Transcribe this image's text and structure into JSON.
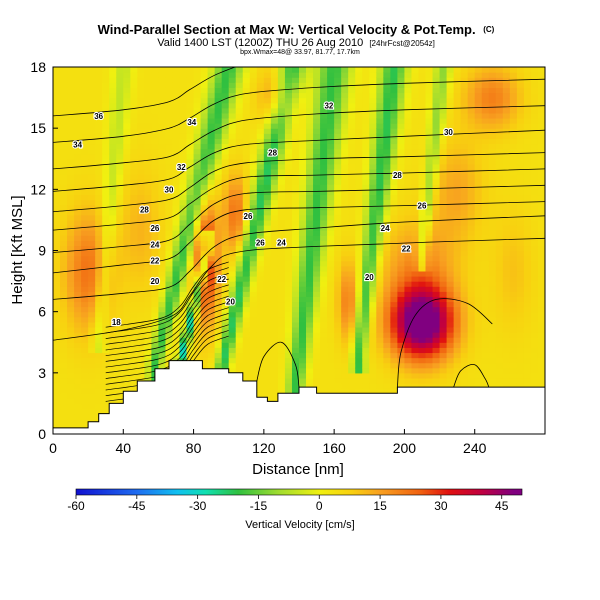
{
  "chart_data": {
    "type": "heatmap",
    "title": "Wind-Parallel Section at Max W: Vertical Velocity & Pot.Temp.",
    "title_suffix": "(C)",
    "subtitle_main": "Valid 1400 LST (1200Z) THU 26 Aug 2010",
    "subtitle_fcst": "[24hrFcst@2054z]",
    "subtitle_small": "bpx.Wmax=48@ 33.97, 81.77, 17.7km",
    "xlabel": "Distance [nm]",
    "ylabel": "Height [Kft MSL]",
    "xlim": [
      0,
      280
    ],
    "ylim": [
      0,
      18
    ],
    "xticks": [
      0,
      40,
      80,
      120,
      160,
      200,
      240
    ],
    "yticks": [
      0,
      3,
      6,
      9,
      12,
      15,
      18
    ],
    "colorbar": {
      "label": "Vertical Velocity [cm/s]",
      "range": [
        -60,
        50
      ],
      "ticks": [
        -60,
        -45,
        -30,
        -15,
        0,
        15,
        30,
        45
      ],
      "stops": [
        {
          "v": -60,
          "c": "#1010d0"
        },
        {
          "v": -45,
          "c": "#1f6cf0"
        },
        {
          "v": -35,
          "c": "#10c0f0"
        },
        {
          "v": -28,
          "c": "#10e0b0"
        },
        {
          "v": -20,
          "c": "#30c040"
        },
        {
          "v": -10,
          "c": "#a0dc30"
        },
        {
          "v": 0,
          "c": "#f0f010"
        },
        {
          "v": 8,
          "c": "#f8d010"
        },
        {
          "v": 15,
          "c": "#f8a020"
        },
        {
          "v": 25,
          "c": "#f06010"
        },
        {
          "v": 32,
          "c": "#e01010"
        },
        {
          "v": 40,
          "c": "#c00040"
        },
        {
          "v": 48,
          "c": "#800080"
        }
      ]
    },
    "terrain": [
      [
        0,
        0.3
      ],
      [
        20,
        0.3
      ],
      [
        20,
        0.6
      ],
      [
        26,
        0.6
      ],
      [
        26,
        1.0
      ],
      [
        32,
        1.0
      ],
      [
        32,
        1.5
      ],
      [
        40,
        1.5
      ],
      [
        40,
        2.1
      ],
      [
        48,
        2.1
      ],
      [
        48,
        2.6
      ],
      [
        58,
        2.6
      ],
      [
        58,
        3.2
      ],
      [
        66,
        3.2
      ],
      [
        66,
        3.6
      ],
      [
        85,
        3.6
      ],
      [
        85,
        3.2
      ],
      [
        100,
        3.2
      ],
      [
        100,
        3.0
      ],
      [
        108,
        3.0
      ],
      [
        108,
        2.6
      ],
      [
        116,
        2.6
      ],
      [
        116,
        1.8
      ],
      [
        122,
        1.8
      ],
      [
        122,
        1.6
      ],
      [
        128,
        1.6
      ],
      [
        128,
        2.0
      ],
      [
        140,
        2.0
      ],
      [
        140,
        2.3
      ],
      [
        150,
        2.3
      ],
      [
        150,
        2.0
      ],
      [
        196,
        2.0
      ],
      [
        196,
        2.3
      ],
      [
        280,
        2.3
      ]
    ],
    "bands": [
      {
        "x1": 58,
        "y1": 3.4,
        "x2": 100,
        "y2": 18,
        "wbot": 4,
        "wtop": 9,
        "amp": -24
      },
      {
        "x1": 72,
        "y1": 3.4,
        "x2": 88,
        "y2": 9,
        "wbot": 2.5,
        "wtop": 3,
        "amp": -34
      },
      {
        "x1": 96,
        "y1": 3.2,
        "x2": 136,
        "y2": 18,
        "wbot": 4,
        "wtop": 8,
        "amp": -26
      },
      {
        "x1": 138,
        "y1": 2.4,
        "x2": 160,
        "y2": 18,
        "wbot": 5,
        "wtop": 10,
        "amp": -24
      },
      {
        "x1": 174,
        "y1": 4,
        "x2": 194,
        "y2": 18,
        "wbot": 4,
        "wtop": 8,
        "amp": -25
      },
      {
        "x1": 210,
        "y1": 9,
        "x2": 222,
        "y2": 18,
        "wbot": 3,
        "wtop": 5,
        "amp": -16
      },
      {
        "x1": 26,
        "y1": 5,
        "x2": 40,
        "y2": 18,
        "wbot": 4,
        "wtop": 6,
        "amp": -10
      }
    ],
    "blobs": [
      {
        "x": 210,
        "y": 5.5,
        "sx": 18,
        "sy": 1.8,
        "amp": 54
      },
      {
        "x": 208,
        "y": 8.5,
        "sx": 22,
        "sy": 2.2,
        "amp": 12
      },
      {
        "x": 87,
        "y": 8.5,
        "sx": 7,
        "sy": 3.0,
        "amp": 30
      },
      {
        "x": 104,
        "y": 10.8,
        "sx": 7,
        "sy": 2.0,
        "amp": 18
      },
      {
        "x": 250,
        "y": 16.5,
        "sx": 16,
        "sy": 1.6,
        "amp": 16
      },
      {
        "x": 127,
        "y": 16.5,
        "sx": 10,
        "sy": 1.5,
        "amp": 14
      },
      {
        "x": 20,
        "y": 8,
        "sx": 14,
        "sy": 3.0,
        "amp": 18
      },
      {
        "x": 50,
        "y": 10,
        "sx": 12,
        "sy": 3.0,
        "amp": 8
      },
      {
        "x": 168,
        "y": 6.5,
        "sx": 6,
        "sy": 2.0,
        "amp": 16
      },
      {
        "x": 230,
        "y": 12,
        "sx": 15,
        "sy": 2.5,
        "amp": 10
      },
      {
        "x": 262,
        "y": 8,
        "sx": 12,
        "sy": 3.0,
        "amp": 6
      }
    ],
    "isentropes": [
      {
        "label": "18",
        "label_x": 35,
        "pts": [
          [
            0,
            4.6
          ],
          [
            40,
            5.1
          ],
          [
            68,
            5.8
          ],
          [
            78,
            6.8
          ],
          [
            90,
            8.2
          ],
          [
            104,
            8.9
          ],
          [
            150,
            9.2
          ],
          [
            280,
            9.6
          ]
        ]
      },
      {
        "label": "20",
        "label_x": 58,
        "pts": [
          [
            0,
            6.6
          ],
          [
            40,
            6.9
          ],
          [
            66,
            7.2
          ],
          [
            78,
            8.0
          ],
          [
            92,
            9.2
          ],
          [
            110,
            9.8
          ],
          [
            150,
            10.1
          ],
          [
            200,
            10.4
          ],
          [
            280,
            10.7
          ]
        ]
      },
      {
        "label": "22",
        "label_x": 58,
        "pts": [
          [
            0,
            7.9
          ],
          [
            40,
            8.3
          ],
          [
            66,
            8.6
          ],
          [
            78,
            9.4
          ],
          [
            92,
            10.5
          ],
          [
            110,
            11.0
          ],
          [
            150,
            11.1
          ],
          [
            200,
            11.2
          ],
          [
            280,
            11.4
          ]
        ]
      },
      {
        "label": "24",
        "label_x": 58,
        "pts": [
          [
            0,
            8.9
          ],
          [
            40,
            9.2
          ],
          [
            66,
            9.5
          ],
          [
            78,
            10.3
          ],
          [
            92,
            11.3
          ],
          [
            110,
            11.8
          ],
          [
            150,
            11.9
          ],
          [
            200,
            12.0
          ],
          [
            280,
            12.2
          ]
        ]
      },
      {
        "label": "26",
        "label_x": 52,
        "pts": [
          [
            0,
            10.0
          ],
          [
            40,
            10.3
          ],
          [
            66,
            10.6
          ],
          [
            78,
            11.3
          ],
          [
            92,
            12.1
          ],
          [
            110,
            12.6
          ],
          [
            150,
            12.7
          ],
          [
            200,
            12.8
          ],
          [
            280,
            13.0
          ]
        ]
      },
      {
        "label": "28",
        "label_x": 52,
        "pts": [
          [
            0,
            10.9
          ],
          [
            40,
            11.2
          ],
          [
            66,
            11.5
          ],
          [
            78,
            12.1
          ],
          [
            92,
            12.9
          ],
          [
            110,
            13.3
          ],
          [
            150,
            13.5
          ],
          [
            200,
            13.6
          ],
          [
            280,
            13.8
          ]
        ]
      },
      {
        "label": "30",
        "label_x": 65,
        "pts": [
          [
            0,
            11.9
          ],
          [
            40,
            12.2
          ],
          [
            66,
            12.5
          ],
          [
            78,
            13.1
          ],
          [
            92,
            13.8
          ],
          [
            110,
            14.2
          ],
          [
            150,
            14.4
          ],
          [
            200,
            14.6
          ],
          [
            280,
            14.9
          ]
        ]
      },
      {
        "label": "32",
        "label_x": 72,
        "pts": [
          [
            0,
            13.0
          ],
          [
            40,
            13.3
          ],
          [
            66,
            13.6
          ],
          [
            78,
            14.2
          ],
          [
            92,
            14.9
          ],
          [
            110,
            15.4
          ],
          [
            150,
            15.7
          ],
          [
            200,
            15.9
          ],
          [
            280,
            16.1
          ]
        ]
      },
      {
        "label": "34",
        "label_x": 12,
        "pts": [
          [
            0,
            14.3
          ],
          [
            40,
            14.6
          ],
          [
            66,
            15.0
          ],
          [
            78,
            15.5
          ],
          [
            92,
            16.2
          ],
          [
            110,
            16.7
          ],
          [
            150,
            17.0
          ],
          [
            200,
            17.2
          ],
          [
            280,
            17.4
          ]
        ]
      },
      {
        "label": "36",
        "label_x": 25,
        "pts": [
          [
            0,
            15.6
          ],
          [
            40,
            15.9
          ],
          [
            66,
            16.3
          ],
          [
            78,
            16.9
          ],
          [
            92,
            17.6
          ],
          [
            110,
            18.2
          ]
        ]
      }
    ],
    "contour_labels": [
      {
        "text": "18",
        "x": 36,
        "y": 5.5
      },
      {
        "text": "20",
        "x": 58,
        "y": 7.5
      },
      {
        "text": "22",
        "x": 58,
        "y": 8.5
      },
      {
        "text": "24",
        "x": 58,
        "y": 9.3
      },
      {
        "text": "26",
        "x": 58,
        "y": 10.1
      },
      {
        "text": "28",
        "x": 52,
        "y": 11.0
      },
      {
        "text": "30",
        "x": 66,
        "y": 12.0
      },
      {
        "text": "32",
        "x": 73,
        "y": 13.1
      },
      {
        "text": "34",
        "x": 14,
        "y": 14.2
      },
      {
        "text": "36",
        "x": 26,
        "y": 15.6
      },
      {
        "text": "34",
        "x": 79,
        "y": 15.3
      },
      {
        "text": "20",
        "x": 101,
        "y": 6.5
      },
      {
        "text": "22",
        "x": 96,
        "y": 7.6
      },
      {
        "text": "26",
        "x": 111,
        "y": 10.7
      },
      {
        "text": "26",
        "x": 118,
        "y": 9.4
      },
      {
        "text": "24",
        "x": 130,
        "y": 9.4
      },
      {
        "text": "28",
        "x": 125,
        "y": 13.8
      },
      {
        "text": "32",
        "x": 157,
        "y": 16.1
      },
      {
        "text": "30",
        "x": 225,
        "y": 14.8
      },
      {
        "text": "28",
        "x": 196,
        "y": 12.7
      },
      {
        "text": "26",
        "x": 210,
        "y": 11.2
      },
      {
        "text": "24",
        "x": 189,
        "y": 10.1
      },
      {
        "text": "22",
        "x": 201,
        "y": 9.1
      },
      {
        "text": "20",
        "x": 180,
        "y": 7.7
      }
    ]
  }
}
